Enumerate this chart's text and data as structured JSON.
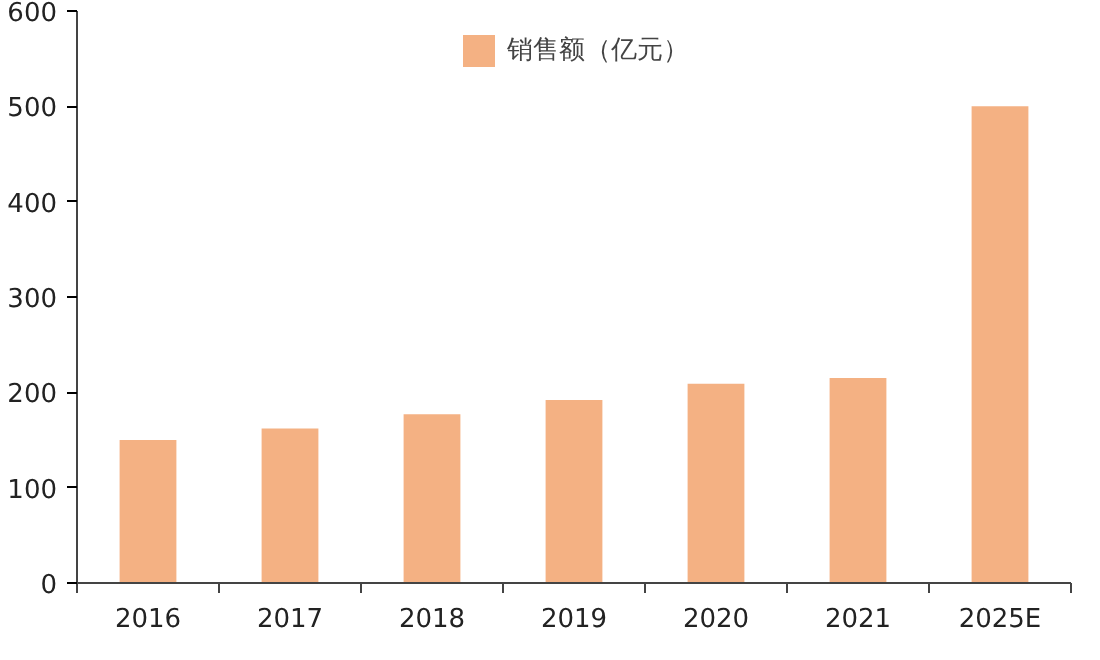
{
  "chart_data": {
    "type": "bar",
    "categories": [
      "2016",
      "2017",
      "2018",
      "2019",
      "2020",
      "2021",
      "2025E"
    ],
    "series": [
      {
        "name": "销售额（亿元）",
        "color": "#f4b183",
        "values": [
          150,
          162,
          177,
          192,
          209,
          215,
          500
        ]
      }
    ],
    "ylim": [
      0,
      600
    ],
    "yticks": [
      0,
      100,
      200,
      300,
      400,
      500,
      600
    ],
    "grid": false,
    "legend": "top"
  }
}
